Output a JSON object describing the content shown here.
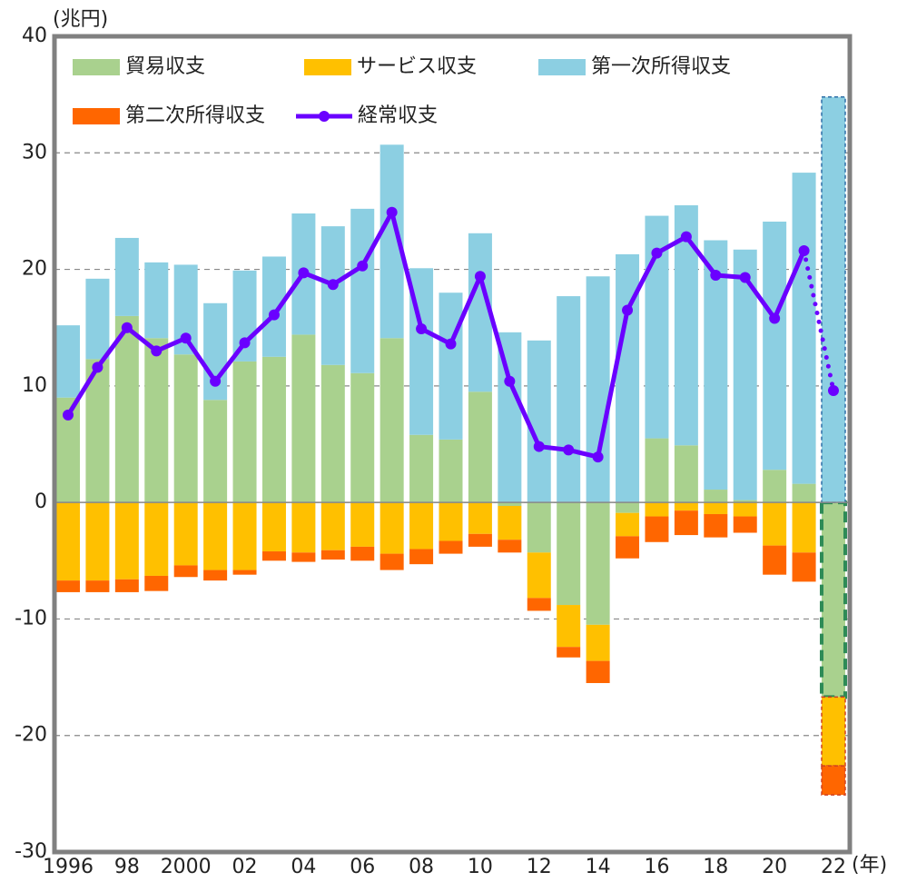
{
  "chart_data": {
    "type": "bar",
    "y_unit": "(兆円)",
    "x_unit": "(年)",
    "categories": [
      "1996",
      null,
      "98",
      null,
      "2000",
      null,
      "02",
      null,
      "04",
      null,
      "06",
      null,
      "08",
      null,
      "10",
      null,
      "12",
      null,
      "14",
      null,
      "16",
      null,
      "18",
      null,
      "20",
      null,
      "22"
    ],
    "ylim": [
      -30,
      40
    ],
    "yticks": [
      -30,
      -20,
      -10,
      0,
      10,
      20,
      30,
      40
    ],
    "grid": true,
    "series": [
      {
        "name": "貿易収支",
        "color": "#a9d18e",
        "values": [
          9.0,
          12.3,
          16.0,
          14.1,
          12.7,
          8.8,
          12.1,
          12.5,
          14.4,
          11.8,
          11.1,
          14.1,
          5.8,
          5.4,
          9.5,
          -0.3,
          -4.3,
          -8.8,
          -10.5,
          -0.9,
          5.5,
          4.9,
          1.1,
          0.2,
          2.8,
          1.6,
          -16.7
        ]
      },
      {
        "name": "サービス収支",
        "color": "#ffc000",
        "values": [
          -6.7,
          -6.7,
          -6.6,
          -6.3,
          -5.4,
          -5.8,
          -5.8,
          -4.2,
          -4.3,
          -4.1,
          -3.8,
          -4.4,
          -4.0,
          -3.3,
          -2.7,
          -2.9,
          -3.9,
          -3.6,
          -3.1,
          -2.0,
          -1.2,
          -0.7,
          -1.0,
          -1.2,
          -3.7,
          -4.3,
          -5.9
        ]
      },
      {
        "name": "第一次所得収支",
        "color": "#8ccfe2",
        "values": [
          6.2,
          6.9,
          6.7,
          6.5,
          7.7,
          8.3,
          7.8,
          8.6,
          10.4,
          11.9,
          14.1,
          16.6,
          14.3,
          12.6,
          13.6,
          14.6,
          13.9,
          17.7,
          19.4,
          21.3,
          19.1,
          20.6,
          21.4,
          21.5,
          21.3,
          26.7,
          34.8
        ]
      },
      {
        "name": "第二次所得収支",
        "color": "#ff6600",
        "values": [
          -1.0,
          -1.0,
          -1.1,
          -1.3,
          -1.0,
          -0.9,
          -0.4,
          -0.8,
          -0.8,
          -0.8,
          -1.2,
          -1.4,
          -1.3,
          -1.1,
          -1.1,
          -1.1,
          -1.1,
          -0.9,
          -1.9,
          -1.9,
          -2.2,
          -2.1,
          -2.0,
          -1.4,
          -2.5,
          -2.5,
          -2.5
        ]
      },
      {
        "name": "経常収支",
        "color": "#6a00ff",
        "type": "line",
        "values": [
          7.5,
          11.6,
          15.0,
          13.0,
          14.1,
          10.4,
          13.7,
          16.1,
          19.7,
          18.7,
          20.3,
          24.9,
          14.9,
          13.6,
          19.4,
          10.4,
          4.8,
          4.5,
          3.9,
          16.5,
          21.4,
          22.8,
          19.5,
          19.3,
          15.8,
          21.6,
          9.6
        ]
      }
    ]
  }
}
